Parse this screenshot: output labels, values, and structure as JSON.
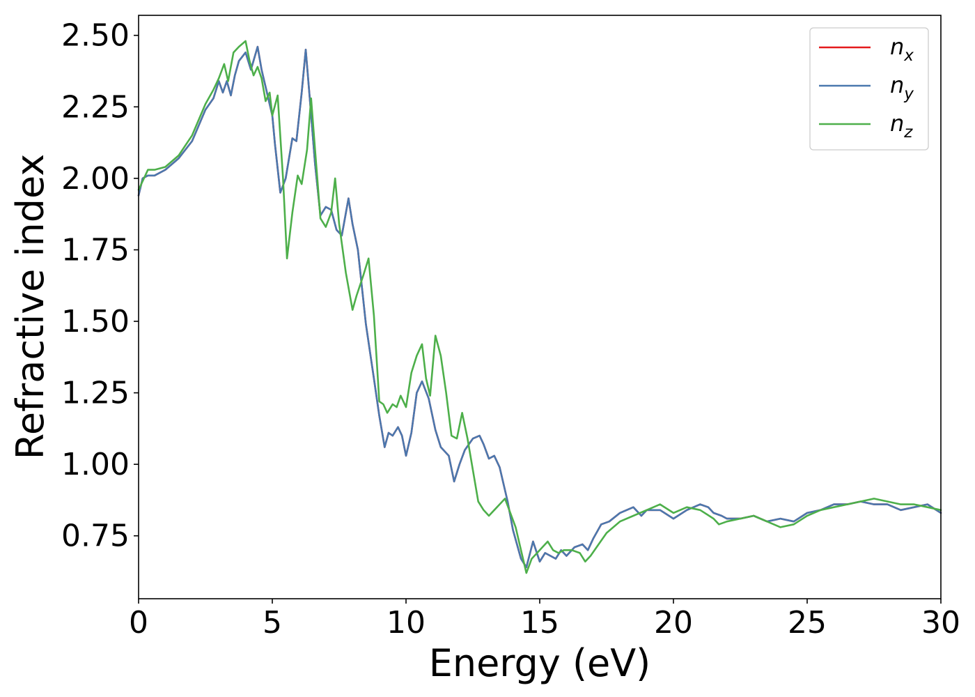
{
  "chart_data": {
    "type": "line",
    "xlabel": "Energy (eV)",
    "ylabel": "Refractive index",
    "xlim": [
      0,
      30
    ],
    "ylim": [
      0.53,
      2.57
    ],
    "x_ticks": [
      0,
      5,
      10,
      15,
      20,
      25,
      30
    ],
    "x_tick_labels": [
      "0",
      "5",
      "10",
      "15",
      "20",
      "25",
      "30"
    ],
    "y_ticks": [
      0.75,
      1.0,
      1.25,
      1.5,
      1.75,
      2.0,
      2.25,
      2.5
    ],
    "y_tick_labels": [
      "0.75",
      "1.00",
      "1.25",
      "1.50",
      "1.75",
      "2.00",
      "2.25",
      "2.50"
    ],
    "grid": false,
    "legend_position": "top-right",
    "series": [
      {
        "name": "n_x",
        "legend_base": "n",
        "legend_sub": "x",
        "color": "#e41a1c",
        "x": [
          0,
          0.15,
          0.35,
          0.6,
          1.0,
          1.5,
          2.0,
          2.5,
          2.8,
          3.0,
          3.15,
          3.3,
          3.45,
          3.6,
          3.75,
          4.0,
          4.2,
          4.45,
          4.6,
          4.8,
          5.0,
          5.1,
          5.3,
          5.5,
          5.75,
          5.9,
          6.1,
          6.25,
          6.4,
          6.6,
          6.8,
          7.0,
          7.2,
          7.4,
          7.6,
          7.85,
          8.0,
          8.2,
          8.5,
          8.8,
          9.0,
          9.2,
          9.35,
          9.5,
          9.7,
          9.85,
          10.0,
          10.2,
          10.4,
          10.6,
          10.85,
          11.1,
          11.3,
          11.6,
          11.8,
          12.0,
          12.2,
          12.5,
          12.75,
          12.9,
          13.1,
          13.3,
          13.5,
          13.8,
          14.0,
          14.3,
          14.5,
          14.75,
          15.0,
          15.2,
          15.4,
          15.6,
          15.8,
          16.0,
          16.3,
          16.6,
          16.8,
          17.0,
          17.3,
          17.6,
          18.0,
          18.5,
          18.8,
          19.0,
          19.5,
          20.0,
          20.5,
          21.0,
          21.3,
          21.5,
          21.8,
          22.0,
          22.5,
          23.0,
          23.5,
          24.0,
          24.5,
          25.0,
          25.5,
          26.0,
          26.5,
          27.0,
          27.5,
          28.0,
          28.5,
          29.0,
          29.5,
          30.0
        ],
        "y": [
          1.94,
          2.0,
          2.01,
          2.01,
          2.03,
          2.07,
          2.13,
          2.24,
          2.28,
          2.34,
          2.3,
          2.34,
          2.29,
          2.36,
          2.41,
          2.44,
          2.38,
          2.46,
          2.38,
          2.3,
          2.22,
          2.12,
          1.95,
          2.0,
          2.14,
          2.13,
          2.3,
          2.45,
          2.28,
          2.05,
          1.87,
          1.9,
          1.89,
          1.82,
          1.8,
          1.93,
          1.84,
          1.75,
          1.49,
          1.3,
          1.17,
          1.06,
          1.11,
          1.1,
          1.13,
          1.1,
          1.03,
          1.11,
          1.25,
          1.29,
          1.23,
          1.12,
          1.06,
          1.03,
          0.94,
          1.0,
          1.05,
          1.09,
          1.1,
          1.07,
          1.02,
          1.03,
          0.99,
          0.87,
          0.77,
          0.67,
          0.64,
          0.73,
          0.66,
          0.69,
          0.68,
          0.67,
          0.7,
          0.68,
          0.71,
          0.72,
          0.7,
          0.74,
          0.79,
          0.8,
          0.83,
          0.85,
          0.82,
          0.84,
          0.84,
          0.81,
          0.84,
          0.86,
          0.85,
          0.83,
          0.82,
          0.81,
          0.81,
          0.82,
          0.8,
          0.81,
          0.8,
          0.83,
          0.84,
          0.86,
          0.86,
          0.87,
          0.86,
          0.86,
          0.84,
          0.85,
          0.86,
          0.83
        ]
      },
      {
        "name": "n_y",
        "legend_base": "n",
        "legend_sub": "y",
        "color": "#4a78ae",
        "x": [
          0,
          0.15,
          0.35,
          0.6,
          1.0,
          1.5,
          2.0,
          2.5,
          2.8,
          3.0,
          3.15,
          3.3,
          3.45,
          3.6,
          3.75,
          4.0,
          4.2,
          4.45,
          4.6,
          4.8,
          5.0,
          5.1,
          5.3,
          5.5,
          5.75,
          5.9,
          6.1,
          6.25,
          6.4,
          6.6,
          6.8,
          7.0,
          7.2,
          7.4,
          7.6,
          7.85,
          8.0,
          8.2,
          8.5,
          8.8,
          9.0,
          9.2,
          9.35,
          9.5,
          9.7,
          9.85,
          10.0,
          10.2,
          10.4,
          10.6,
          10.85,
          11.1,
          11.3,
          11.6,
          11.8,
          12.0,
          12.2,
          12.5,
          12.75,
          12.9,
          13.1,
          13.3,
          13.5,
          13.8,
          14.0,
          14.3,
          14.5,
          14.75,
          15.0,
          15.2,
          15.4,
          15.6,
          15.8,
          16.0,
          16.3,
          16.6,
          16.8,
          17.0,
          17.3,
          17.6,
          18.0,
          18.5,
          18.8,
          19.0,
          19.5,
          20.0,
          20.5,
          21.0,
          21.3,
          21.5,
          21.8,
          22.0,
          22.5,
          23.0,
          23.5,
          24.0,
          24.5,
          25.0,
          25.5,
          26.0,
          26.5,
          27.0,
          27.5,
          28.0,
          28.5,
          29.0,
          29.5,
          30.0
        ],
        "y": [
          1.94,
          2.0,
          2.01,
          2.01,
          2.03,
          2.07,
          2.13,
          2.24,
          2.28,
          2.34,
          2.3,
          2.34,
          2.29,
          2.36,
          2.41,
          2.44,
          2.38,
          2.46,
          2.38,
          2.3,
          2.22,
          2.12,
          1.95,
          2.0,
          2.14,
          2.13,
          2.3,
          2.45,
          2.28,
          2.05,
          1.87,
          1.9,
          1.89,
          1.82,
          1.8,
          1.93,
          1.84,
          1.75,
          1.49,
          1.3,
          1.17,
          1.06,
          1.11,
          1.1,
          1.13,
          1.1,
          1.03,
          1.11,
          1.25,
          1.29,
          1.23,
          1.12,
          1.06,
          1.03,
          0.94,
          1.0,
          1.05,
          1.09,
          1.1,
          1.07,
          1.02,
          1.03,
          0.99,
          0.87,
          0.77,
          0.67,
          0.64,
          0.73,
          0.66,
          0.69,
          0.68,
          0.67,
          0.7,
          0.68,
          0.71,
          0.72,
          0.7,
          0.74,
          0.79,
          0.8,
          0.83,
          0.85,
          0.82,
          0.84,
          0.84,
          0.81,
          0.84,
          0.86,
          0.85,
          0.83,
          0.82,
          0.81,
          0.81,
          0.82,
          0.8,
          0.81,
          0.8,
          0.83,
          0.84,
          0.86,
          0.86,
          0.87,
          0.86,
          0.86,
          0.84,
          0.85,
          0.86,
          0.83
        ]
      },
      {
        "name": "n_z",
        "legend_base": "n",
        "legend_sub": "z",
        "color": "#4daf4a",
        "x": [
          0,
          0.15,
          0.35,
          0.6,
          1.0,
          1.5,
          2.0,
          2.5,
          2.8,
          3.0,
          3.2,
          3.35,
          3.55,
          3.75,
          4.0,
          4.15,
          4.3,
          4.45,
          4.6,
          4.75,
          4.9,
          5.0,
          5.2,
          5.4,
          5.55,
          5.75,
          5.95,
          6.1,
          6.3,
          6.45,
          6.6,
          6.8,
          7.0,
          7.2,
          7.35,
          7.5,
          7.75,
          8.0,
          8.15,
          8.4,
          8.6,
          8.8,
          9.0,
          9.15,
          9.3,
          9.5,
          9.65,
          9.8,
          10.0,
          10.2,
          10.4,
          10.6,
          10.75,
          10.9,
          11.1,
          11.3,
          11.5,
          11.7,
          11.9,
          12.1,
          12.3,
          12.5,
          12.7,
          12.9,
          13.1,
          13.3,
          13.5,
          13.7,
          13.9,
          14.1,
          14.3,
          14.5,
          14.7,
          14.9,
          15.1,
          15.3,
          15.5,
          15.7,
          15.9,
          16.2,
          16.5,
          16.7,
          16.9,
          17.2,
          17.5,
          18.0,
          18.5,
          19.0,
          19.5,
          20.0,
          20.5,
          21.0,
          21.5,
          21.7,
          22.0,
          22.5,
          23.0,
          23.5,
          24.0,
          24.5,
          25.0,
          25.5,
          26.0,
          26.5,
          27.0,
          27.5,
          28.0,
          28.5,
          29.0,
          29.5,
          30.0
        ],
        "y": [
          1.96,
          1.99,
          2.03,
          2.03,
          2.04,
          2.08,
          2.15,
          2.26,
          2.31,
          2.35,
          2.4,
          2.34,
          2.44,
          2.46,
          2.48,
          2.41,
          2.36,
          2.39,
          2.35,
          2.27,
          2.3,
          2.22,
          2.29,
          2.0,
          1.72,
          1.88,
          2.01,
          1.98,
          2.1,
          2.28,
          2.1,
          1.86,
          1.83,
          1.88,
          2.0,
          1.84,
          1.67,
          1.54,
          1.59,
          1.66,
          1.72,
          1.52,
          1.22,
          1.21,
          1.18,
          1.21,
          1.2,
          1.24,
          1.2,
          1.32,
          1.38,
          1.42,
          1.3,
          1.24,
          1.45,
          1.38,
          1.25,
          1.1,
          1.09,
          1.18,
          1.09,
          0.98,
          0.87,
          0.84,
          0.82,
          0.84,
          0.86,
          0.88,
          0.83,
          0.78,
          0.7,
          0.62,
          0.67,
          0.69,
          0.71,
          0.73,
          0.7,
          0.69,
          0.7,
          0.7,
          0.69,
          0.66,
          0.68,
          0.72,
          0.76,
          0.8,
          0.82,
          0.84,
          0.86,
          0.83,
          0.85,
          0.84,
          0.81,
          0.79,
          0.8,
          0.81,
          0.82,
          0.8,
          0.78,
          0.79,
          0.82,
          0.84,
          0.85,
          0.86,
          0.87,
          0.88,
          0.87,
          0.86,
          0.86,
          0.85,
          0.84
        ]
      }
    ]
  }
}
